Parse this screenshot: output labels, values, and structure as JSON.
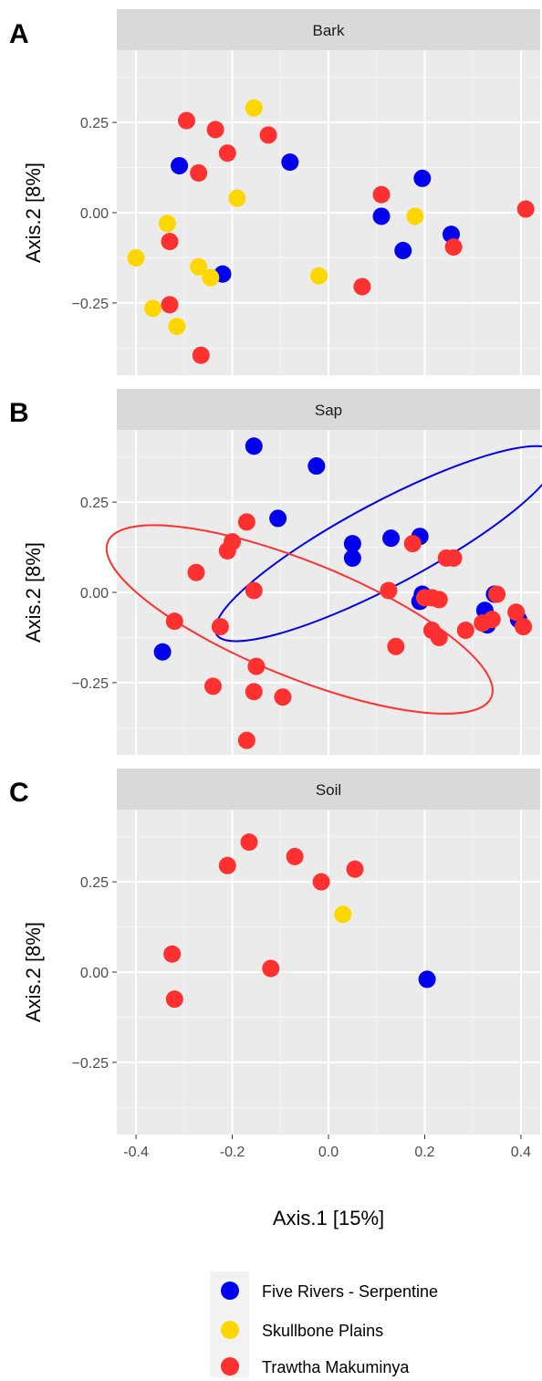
{
  "colors": {
    "panel_bg": "#EBEBEB",
    "strip_bg": "#D9D9D9",
    "grid_major": "#FFFFFF",
    "tick_text": "#4D4D4D",
    "legend_key_bg": "#F2F2F2"
  },
  "legend": {
    "placement": "bottom",
    "items": [
      {
        "label": "Five Rivers - Serpentine",
        "color": "#0000EE"
      },
      {
        "label": "Skullbone Plains",
        "color": "#FFD700"
      },
      {
        "label": "Trawtha Makuminya",
        "color": "#FF3030"
      }
    ]
  },
  "chart_data": {
    "type": "scatter",
    "xlabel": "Axis.1   [15%]",
    "ylabel": "Axis.2   [8%]",
    "xlim": [
      -0.44,
      0.44
    ],
    "ylim": [
      -0.45,
      0.45
    ],
    "x_ticks": [
      -0.4,
      -0.2,
      0.0,
      0.2,
      0.4
    ],
    "x_tick_labels": [
      "-0.4",
      "-0.2",
      "0.0",
      "0.2",
      "0.4"
    ],
    "y_ticks": [
      -0.25,
      0.0,
      0.25
    ],
    "y_tick_labels": [
      "−0.25",
      "0.00",
      "0.25"
    ],
    "grid": true,
    "panels": [
      {
        "letter": "A",
        "title": "Bark",
        "series": [
          {
            "name": "Five Rivers - Serpentine",
            "points": [
              [
                -0.31,
                0.13
              ],
              [
                -0.08,
                0.14
              ],
              [
                0.195,
                0.095
              ],
              [
                0.11,
                -0.01
              ],
              [
                0.155,
                -0.105
              ],
              [
                0.255,
                -0.06
              ],
              [
                -0.22,
                -0.17
              ]
            ]
          },
          {
            "name": "Skullbone Plains",
            "points": [
              [
                -0.155,
                0.29
              ],
              [
                -0.19,
                0.04
              ],
              [
                -0.335,
                -0.03
              ],
              [
                -0.4,
                -0.125
              ],
              [
                -0.27,
                -0.15
              ],
              [
                -0.245,
                -0.18
              ],
              [
                -0.02,
                -0.175
              ],
              [
                0.18,
                -0.01
              ],
              [
                -0.365,
                -0.265
              ],
              [
                -0.315,
                -0.315
              ]
            ]
          },
          {
            "name": "Trawtha Makuminya",
            "points": [
              [
                -0.295,
                0.255
              ],
              [
                -0.235,
                0.23
              ],
              [
                -0.125,
                0.215
              ],
              [
                -0.21,
                0.165
              ],
              [
                -0.27,
                0.11
              ],
              [
                0.11,
                0.05
              ],
              [
                -0.33,
                -0.08
              ],
              [
                0.41,
                0.01
              ],
              [
                0.26,
                -0.095
              ],
              [
                0.07,
                -0.205
              ],
              [
                -0.33,
                -0.255
              ],
              [
                -0.265,
                -0.395
              ]
            ]
          }
        ]
      },
      {
        "letter": "B",
        "title": "Sap",
        "series": [
          {
            "name": "Five Rivers - Serpentine",
            "points": [
              [
                -0.155,
                0.405
              ],
              [
                -0.025,
                0.35
              ],
              [
                -0.105,
                0.205
              ],
              [
                0.05,
                0.135
              ],
              [
                0.05,
                0.095
              ],
              [
                0.13,
                0.15
              ],
              [
                0.19,
                0.155
              ],
              [
                0.195,
                -0.005
              ],
              [
                0.19,
                -0.025
              ],
              [
                0.325,
                -0.05
              ],
              [
                0.345,
                -0.005
              ],
              [
                0.33,
                -0.09
              ],
              [
                0.395,
                -0.075
              ],
              [
                -0.345,
                -0.165
              ]
            ]
          },
          {
            "name": "Trawtha Makuminya",
            "points": [
              [
                -0.17,
                0.195
              ],
              [
                -0.2,
                0.14
              ],
              [
                -0.21,
                0.115
              ],
              [
                -0.275,
                0.055
              ],
              [
                -0.155,
                0.005
              ],
              [
                -0.32,
                -0.08
              ],
              [
                -0.225,
                -0.095
              ],
              [
                0.175,
                0.135
              ],
              [
                0.245,
                0.095
              ],
              [
                0.26,
                0.095
              ],
              [
                0.125,
                0.005
              ],
              [
                0.2,
                -0.015
              ],
              [
                0.215,
                -0.015
              ],
              [
                0.23,
                -0.02
              ],
              [
                0.215,
                -0.105
              ],
              [
                0.23,
                -0.125
              ],
              [
                0.285,
                -0.105
              ],
              [
                0.32,
                -0.085
              ],
              [
                0.34,
                -0.075
              ],
              [
                0.35,
                -0.005
              ],
              [
                0.39,
                -0.055
              ],
              [
                0.405,
                -0.095
              ],
              [
                0.14,
                -0.15
              ],
              [
                -0.24,
                -0.26
              ],
              [
                -0.15,
                -0.205
              ],
              [
                -0.155,
                -0.275
              ],
              [
                -0.095,
                -0.29
              ],
              [
                -0.17,
                -0.41
              ]
            ]
          }
        ],
        "ellipses": [
          {
            "name": "Five Rivers - Serpentine",
            "color": "#0000EE",
            "center": [
              0.12,
              0.135
            ],
            "rx": 0.4,
            "ry": 0.115,
            "angle": -28
          },
          {
            "name": "Trawtha Makuminya",
            "color": "#FF3030",
            "center": [
              -0.06,
              -0.075
            ],
            "rx": 0.43,
            "ry": 0.16,
            "angle": 22
          }
        ]
      },
      {
        "letter": "C",
        "title": "Soil",
        "series": [
          {
            "name": "Five Rivers - Serpentine",
            "points": [
              [
                0.205,
                -0.02
              ]
            ]
          },
          {
            "name": "Skullbone Plains",
            "points": [
              [
                0.03,
                0.16
              ]
            ]
          },
          {
            "name": "Trawtha Makuminya",
            "points": [
              [
                -0.165,
                0.36
              ],
              [
                -0.21,
                0.295
              ],
              [
                -0.07,
                0.32
              ],
              [
                -0.015,
                0.25
              ],
              [
                0.055,
                0.285
              ],
              [
                -0.325,
                0.05
              ],
              [
                -0.12,
                0.01
              ],
              [
                -0.32,
                -0.075
              ]
            ]
          }
        ]
      }
    ]
  }
}
